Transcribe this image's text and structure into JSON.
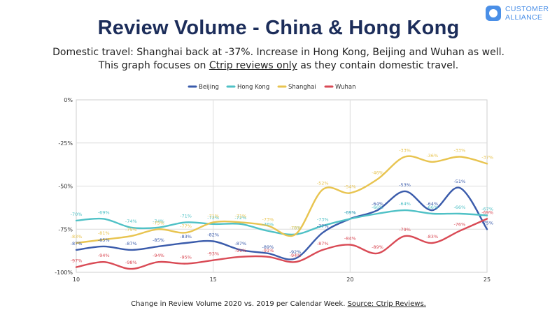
{
  "header": {
    "title": "Review Volume - China & Hong Kong",
    "subtitle_line1": "Domestic travel: Shanghai back at -37%. Increase in Hong Kong, Beijing and Wuhan as well.",
    "subtitle_line2_pre": "This graph focuses on ",
    "subtitle_line2_link": "Ctrip reviews only",
    "subtitle_line2_post": " as they contain domestic travel."
  },
  "logo": {
    "line1": "CUSTOMER",
    "line2": "ALLIANCE",
    "icon": "speech-bubble-icon",
    "color": "#4a8fe7"
  },
  "footer": {
    "text": "Change in Review Volume 2020 vs. 2019 per Calendar Week. ",
    "link": "Source: Ctrip Reviews."
  },
  "chart_data": {
    "type": "line",
    "title": "",
    "xlabel": "",
    "ylabel": "",
    "x": [
      10,
      11,
      12,
      13,
      14,
      15,
      16,
      17,
      18,
      19,
      20,
      21,
      22,
      23,
      24,
      25
    ],
    "xlim": [
      10,
      25
    ],
    "ylim": [
      -100,
      0
    ],
    "x_ticks": [
      "10",
      "15",
      "20",
      "25"
    ],
    "y_ticks": [
      "0%",
      "-25%",
      "-50%",
      "-75%",
      "-100%"
    ],
    "grid": true,
    "legend_position": "top",
    "series": [
      {
        "name": "Beijing",
        "color": "#3a5bab",
        "values": [
          -87,
          -85,
          -87,
          -85,
          -83,
          -82,
          -87,
          -89,
          -92,
          -77,
          -69,
          -64,
          -53,
          -64,
          -51,
          -75
        ],
        "labels": [
          "-87%",
          "-85%",
          "-87%",
          "-85%",
          "-83%",
          "-82%",
          "-87%",
          "-89%",
          "-92%",
          "-77%",
          "-69%",
          "-64%",
          "-53%",
          "-64%",
          "-51%",
          "-75%"
        ]
      },
      {
        "name": "Hong Kong",
        "color": "#4fc1c6",
        "values": [
          -70,
          -69,
          -74,
          -74,
          -71,
          -72,
          -72,
          -76,
          -78,
          -73,
          -69,
          -66,
          -64,
          -66,
          -66,
          -67
        ],
        "labels": [
          "-70%",
          "-69%",
          "-74%",
          "-74%",
          "-71%",
          "-72%",
          "-72%",
          "-76%",
          "-78%",
          "-73%",
          "-69%",
          "-66%",
          "-64%",
          "-66%",
          "-66%",
          "-67%"
        ]
      },
      {
        "name": "Shanghai",
        "color": "#e8c450",
        "values": [
          -83,
          -81,
          -79,
          -75,
          -77,
          -71,
          -71,
          -73,
          -78,
          -52,
          -54,
          -46,
          -33,
          -36,
          -33,
          -37
        ],
        "labels": [
          "-83%",
          "-81%",
          "-79%",
          "-75%",
          "-77%",
          "-71%",
          "-71%",
          "-73%",
          "-78%",
          "-52%",
          "-54%",
          "-46%",
          "-33%",
          "-36%",
          "-33%",
          "-37%"
        ]
      },
      {
        "name": "Wuhan",
        "color": "#d94a55",
        "values": [
          -97,
          -94,
          -98,
          -94,
          -95,
          -93,
          -91,
          -91,
          -94,
          -87,
          -84,
          -89,
          -79,
          -83,
          -76,
          -69
        ],
        "labels": [
          "-97%",
          "-94%",
          "-98%",
          "-94%",
          "-95%",
          "-93%",
          "-91%",
          "-91%",
          "-94%",
          "-87%",
          "-84%",
          "-89%",
          "-79%",
          "-83%",
          "-76%",
          "-69%"
        ]
      }
    ]
  }
}
